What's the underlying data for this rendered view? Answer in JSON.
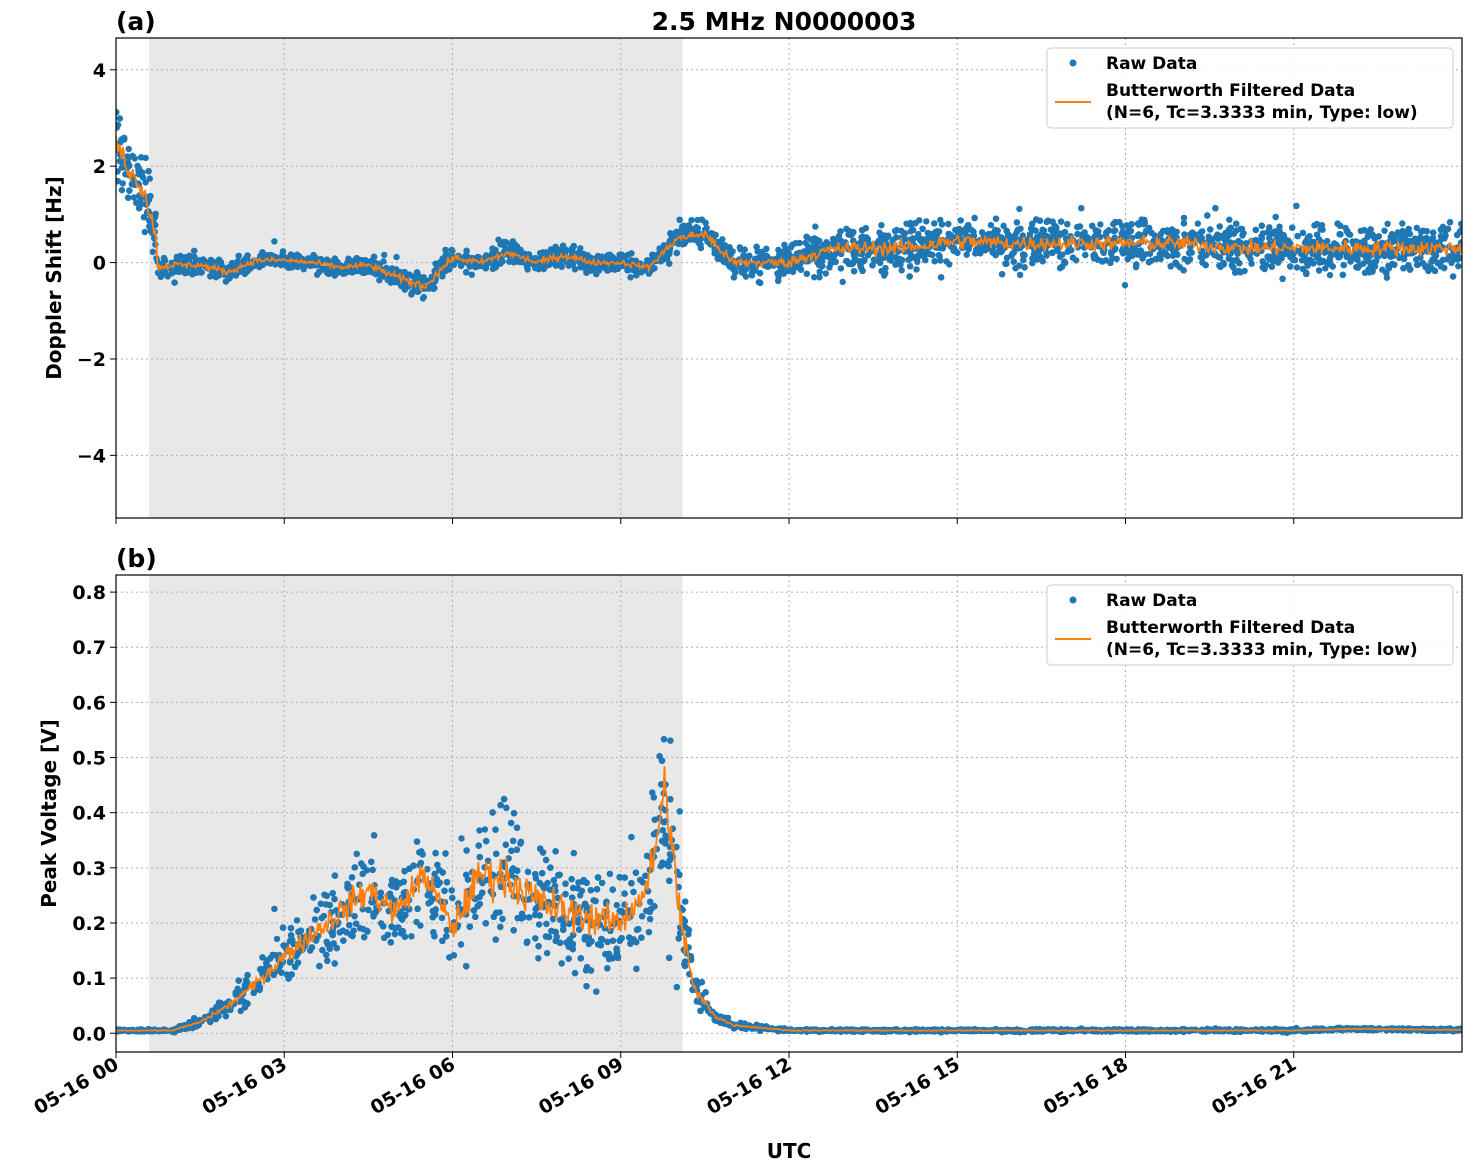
{
  "title": "2.5 MHz N0000003",
  "xlabel": "UTC",
  "colors": {
    "raw": "#1f77b4",
    "filtered": "#ff7f0e",
    "shade": "#e8e8e8",
    "grid": "#b0b0b0"
  },
  "chart_data": [
    {
      "type": "scatter",
      "panel_label": "(a)",
      "ylabel": "Doppler Shift [Hz]",
      "x_unit": "hours since 05-16 00 UTC",
      "xlim": [
        0,
        24
      ],
      "ylim": [
        -5.3,
        4.66
      ],
      "xticks": [
        0,
        3,
        6,
        9,
        12,
        15,
        18,
        21
      ],
      "xtick_labels": [
        "05-16 00",
        "05-16 03",
        "05-16 06",
        "05-16 09",
        "05-16 12",
        "05-16 15",
        "05-16 18",
        "05-16 21"
      ],
      "yticks": [
        -4,
        -2,
        0,
        2,
        4
      ],
      "ytick_labels": [
        "−4",
        "−2",
        "0",
        "2",
        "4"
      ],
      "grid": true,
      "shaded_interval": [
        0.59,
        10.1
      ],
      "legend": {
        "placement": "top-right",
        "entries": [
          "Raw Data",
          "Butterworth Filtered Data",
          "(N=6, Tc=3.3333 min, Type: low)"
        ]
      },
      "series_note_columns": [
        "hour",
        "filtered_value",
        "raw_spread"
      ],
      "series": [
        [
          0,
          2.5,
          1.3
        ],
        [
          0.25,
          1.9,
          1.2
        ],
        [
          0.5,
          1.5,
          1.2
        ],
        [
          0.7,
          0.6,
          1.0
        ],
        [
          0.75,
          -0.1,
          0.45
        ],
        [
          1,
          -0.05,
          0.4
        ],
        [
          1.5,
          -0.05,
          0.35
        ],
        [
          2,
          -0.2,
          0.35
        ],
        [
          2.5,
          0.05,
          0.3
        ],
        [
          3,
          0.05,
          0.3
        ],
        [
          3.5,
          0.0,
          0.3
        ],
        [
          4,
          -0.1,
          0.3
        ],
        [
          4.5,
          -0.05,
          0.3
        ],
        [
          5,
          -0.3,
          0.4
        ],
        [
          5.5,
          -0.5,
          0.5
        ],
        [
          6,
          0.1,
          0.4
        ],
        [
          6.5,
          0.0,
          0.35
        ],
        [
          7,
          0.2,
          0.4
        ],
        [
          7.5,
          0.0,
          0.35
        ],
        [
          8,
          0.15,
          0.45
        ],
        [
          8.5,
          0.0,
          0.3
        ],
        [
          9,
          0.0,
          0.3
        ],
        [
          9.5,
          -0.1,
          0.3
        ],
        [
          10,
          0.5,
          0.45
        ],
        [
          10.5,
          0.6,
          0.5
        ],
        [
          11,
          0.0,
          0.5
        ],
        [
          12,
          0.0,
          0.6
        ],
        [
          12.5,
          0.2,
          0.8
        ],
        [
          13,
          0.3,
          0.85
        ],
        [
          14,
          0.3,
          0.85
        ],
        [
          15,
          0.45,
          0.85
        ],
        [
          16,
          0.4,
          0.85
        ],
        [
          17,
          0.4,
          0.85
        ],
        [
          18,
          0.4,
          0.85
        ],
        [
          19,
          0.4,
          0.85
        ],
        [
          20,
          0.3,
          0.85
        ],
        [
          21,
          0.3,
          0.85
        ],
        [
          22,
          0.3,
          0.9
        ],
        [
          23,
          0.3,
          0.85
        ],
        [
          24,
          0.3,
          0.85
        ]
      ]
    },
    {
      "type": "scatter",
      "panel_label": "(b)",
      "ylabel": "Peak Voltage [V]",
      "x_unit": "hours since 05-16 00 UTC",
      "xlim": [
        0,
        24
      ],
      "ylim": [
        -0.034,
        0.831
      ],
      "xticks": [
        0,
        3,
        6,
        9,
        12,
        15,
        18,
        21
      ],
      "xtick_labels": [
        "05-16 00",
        "05-16 03",
        "05-16 06",
        "05-16 09",
        "05-16 12",
        "05-16 15",
        "05-16 18",
        "05-16 21"
      ],
      "yticks": [
        0.0,
        0.1,
        0.2,
        0.3,
        0.4,
        0.5,
        0.6,
        0.7,
        0.8
      ],
      "ytick_labels": [
        "0.0",
        "0.1",
        "0.2",
        "0.3",
        "0.4",
        "0.5",
        "0.6",
        "0.7",
        "0.8"
      ],
      "grid": true,
      "shaded_interval": [
        0.59,
        10.1
      ],
      "legend": {
        "placement": "top-right",
        "entries": [
          "Raw Data",
          "Butterworth Filtered Data",
          "(N=6, Tc=3.3333 min, Type: low)"
        ]
      },
      "series": [
        [
          0,
          0.005,
          0.003
        ],
        [
          1,
          0.005,
          0.004
        ],
        [
          1.5,
          0.02,
          0.015
        ],
        [
          2,
          0.05,
          0.03
        ],
        [
          2.5,
          0.09,
          0.06
        ],
        [
          3,
          0.14,
          0.09
        ],
        [
          3.5,
          0.18,
          0.12
        ],
        [
          4,
          0.22,
          0.14
        ],
        [
          4.5,
          0.26,
          0.16
        ],
        [
          5,
          0.22,
          0.14
        ],
        [
          5.5,
          0.29,
          0.15
        ],
        [
          6,
          0.19,
          0.15
        ],
        [
          6.5,
          0.29,
          0.2
        ],
        [
          7,
          0.28,
          0.22
        ],
        [
          7.5,
          0.24,
          0.2
        ],
        [
          8,
          0.22,
          0.19
        ],
        [
          8.5,
          0.21,
          0.17
        ],
        [
          9,
          0.2,
          0.15
        ],
        [
          9.5,
          0.27,
          0.2
        ],
        [
          9.8,
          0.45,
          0.3
        ],
        [
          10,
          0.25,
          0.25
        ],
        [
          10.3,
          0.08,
          0.07
        ],
        [
          10.7,
          0.03,
          0.02
        ],
        [
          11,
          0.015,
          0.01
        ],
        [
          12,
          0.005,
          0.004
        ],
        [
          21,
          0.005,
          0.004
        ],
        [
          22,
          0.008,
          0.004
        ],
        [
          24,
          0.006,
          0.004
        ]
      ]
    }
  ]
}
